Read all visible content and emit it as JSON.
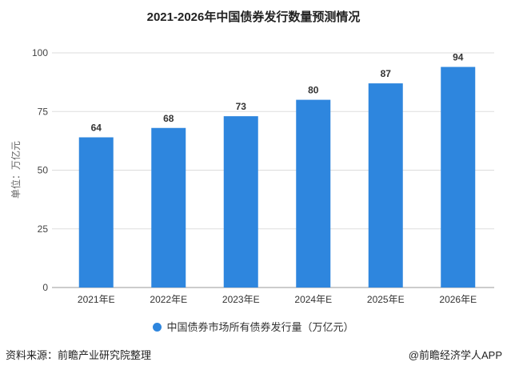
{
  "chart_data": {
    "type": "bar",
    "title": "2021-2026年中国债券发行数量预测情况",
    "ylabel": "单位：万亿元",
    "categories": [
      "2021年E",
      "2022年E",
      "2023年E",
      "2024年E",
      "2025年E",
      "2026年E"
    ],
    "series": [
      {
        "name": "中国债券市场所有债券发行量（万亿元）",
        "values": [
          64,
          68,
          73,
          80,
          87,
          94
        ]
      }
    ],
    "ylim": [
      0,
      100
    ],
    "yticks": [
      0,
      25,
      50,
      75,
      100
    ],
    "grid": true,
    "legend": "bottom",
    "color": "#2e86de"
  },
  "footer": {
    "source": "资料来源：前瞻产业研究院整理",
    "brand": "@前瞻经济学人APP"
  }
}
